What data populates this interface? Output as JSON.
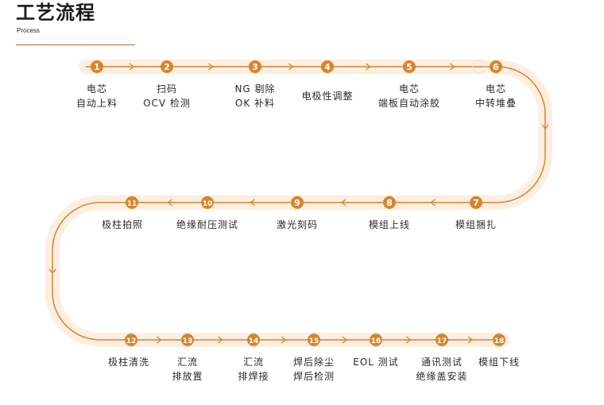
{
  "header": {
    "title": "工艺流程",
    "subtitle": "Process"
  },
  "colors": {
    "accent": "#d9842a",
    "band": "#fbefe2",
    "rule": "#c8652a",
    "text": "#2a2a2a"
  },
  "steps": [
    {
      "num": "1",
      "lines": [
        "电芯",
        "自动上料"
      ]
    },
    {
      "num": "2",
      "lines": [
        "扫码",
        "OCV 检测"
      ]
    },
    {
      "num": "3",
      "lines": [
        "NG 剔除",
        "OK 补料"
      ]
    },
    {
      "num": "4",
      "lines": [
        "电极性调整"
      ]
    },
    {
      "num": "5",
      "lines": [
        "电芯",
        "端板自动涂胶"
      ]
    },
    {
      "num": "6",
      "lines": [
        "电芯",
        "中转堆叠"
      ]
    },
    {
      "num": "7",
      "lines": [
        "模组捆扎"
      ]
    },
    {
      "num": "8",
      "lines": [
        "模组上线"
      ]
    },
    {
      "num": "9",
      "lines": [
        "激光刻码"
      ]
    },
    {
      "num": "10",
      "lines": [
        "绝缘耐压测试"
      ]
    },
    {
      "num": "11",
      "lines": [
        "极柱拍照"
      ]
    },
    {
      "num": "12",
      "lines": [
        "极柱清洗"
      ]
    },
    {
      "num": "13",
      "lines": [
        "汇流",
        "排放置"
      ]
    },
    {
      "num": "14",
      "lines": [
        "汇流",
        "排焊接"
      ]
    },
    {
      "num": "15",
      "lines": [
        "焊后除尘",
        "焊后检测"
      ]
    },
    {
      "num": "16",
      "lines": [
        "EOL 测试"
      ]
    },
    {
      "num": "17",
      "lines": [
        "通讯测试",
        "绝缘盖安装"
      ]
    },
    {
      "num": "18",
      "lines": [
        "模组下线"
      ]
    }
  ]
}
